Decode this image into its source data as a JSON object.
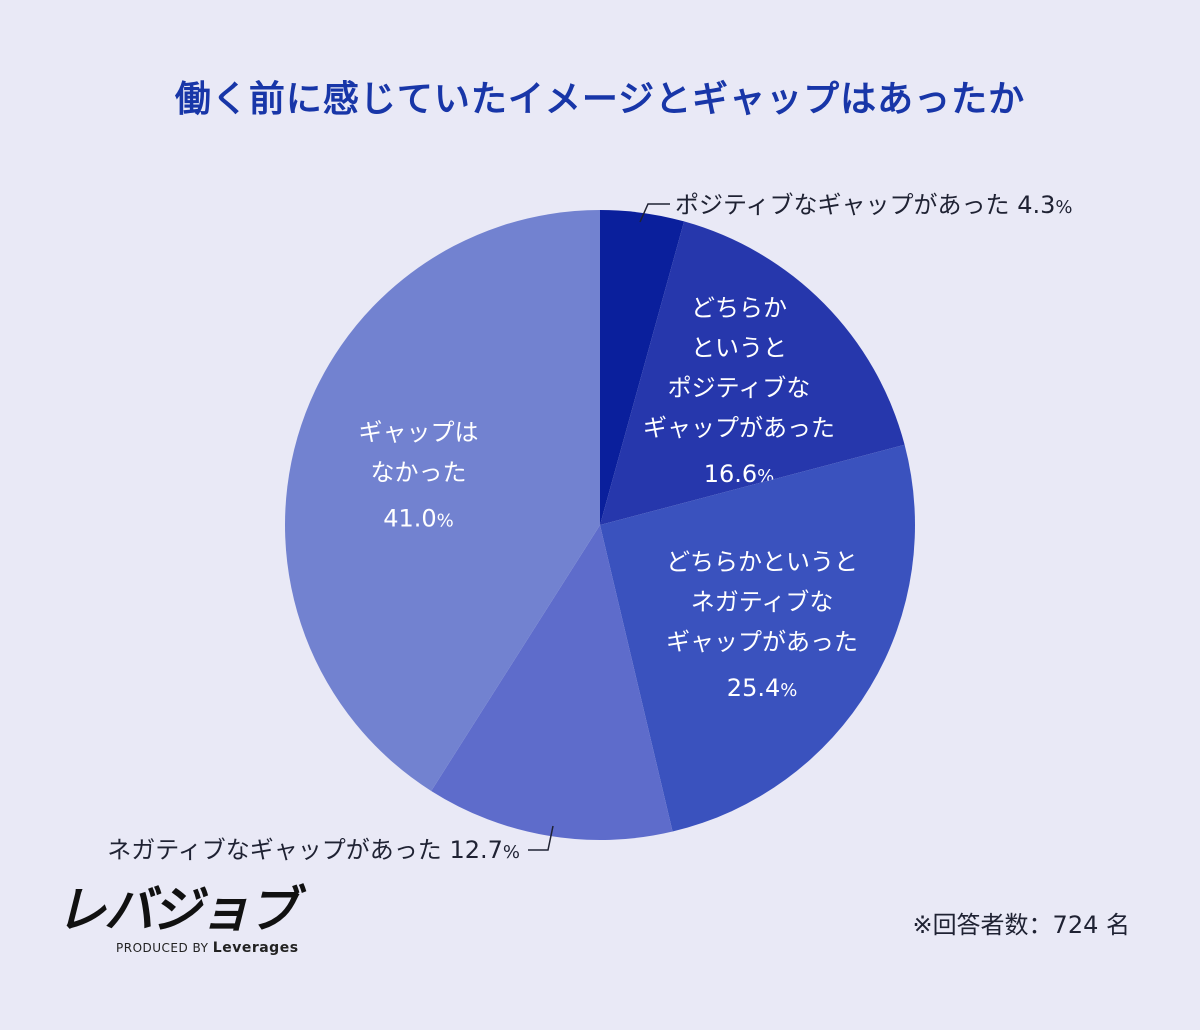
{
  "title": "働く前に感じていたイメージとギャップはあったか",
  "chart_data": {
    "type": "pie",
    "unit": "%",
    "start_angle_deg": 0,
    "direction": "clockwise",
    "slices": [
      {
        "label_lines": [
          "ポジティブなギャップがあった"
        ],
        "value": 4.3,
        "value_text": "4.3",
        "color": "#0a1f9c",
        "label_position": "outside"
      },
      {
        "label_lines": [
          "どちらか",
          "というと",
          "ポジティブな",
          "ギャップがあった"
        ],
        "value": 16.6,
        "value_text": "16.6",
        "color": "#2637ac",
        "label_position": "inside"
      },
      {
        "label_lines": [
          "どちらかというと",
          "ネガティブな",
          "ギャップがあった"
        ],
        "value": 25.4,
        "value_text": "25.4",
        "color": "#3a52be",
        "label_position": "inside"
      },
      {
        "label_lines": [
          "ネガティブなギャップがあった"
        ],
        "value": 12.7,
        "value_text": "12.7",
        "color": "#5e6ccb",
        "label_position": "outside"
      },
      {
        "label_lines": [
          "ギャップは",
          "なかった"
        ],
        "value": 41.0,
        "value_text": "41.0",
        "color": "#7282d0",
        "label_position": "inside"
      }
    ]
  },
  "logo": {
    "mark": "レバジョブ",
    "produced_by": "PRODUCED BY",
    "company": "Leverages"
  },
  "note": "※回答者数：724 名"
}
